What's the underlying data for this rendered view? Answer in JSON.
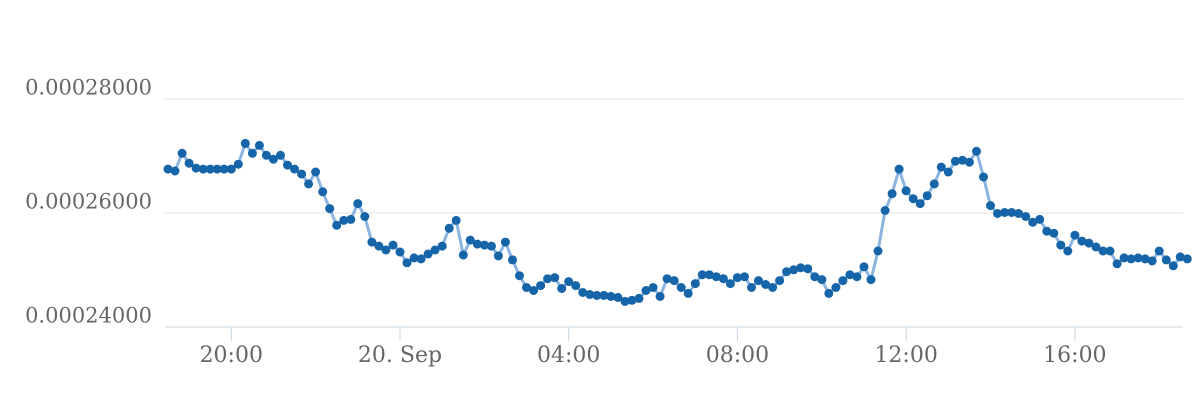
{
  "chart": {
    "title": "",
    "style": {
      "background_color": "#ffffff",
      "marker_color": "#1565A8",
      "line_color": "#8CB4E1",
      "grid_color": "#E6E6E6",
      "axis_line_color": "#C7D4E2",
      "label_color": "#666666"
    }
  },
  "chart_data": {
    "type": "line",
    "title": "",
    "xlabel": "",
    "ylabel": "",
    "legend": "none",
    "grid": "horizontal",
    "marker_style": "filled-circle",
    "x_start": "19. Sep 18:30",
    "x_interval_minutes": 10,
    "ylim": [
      0.00024,
      0.00029
    ],
    "yticks": [
      {
        "label": "0.00028000",
        "value": 0.00028
      },
      {
        "label": "0.00026000",
        "value": 0.00026
      },
      {
        "label": "0.00024000",
        "value": 0.00024
      }
    ],
    "xticks": [
      {
        "label": "20:00",
        "index": 9
      },
      {
        "label": "20. Sep",
        "index": 33
      },
      {
        "label": "04:00",
        "index": 57
      },
      {
        "label": "08:00",
        "index": 81
      },
      {
        "label": "12:00",
        "index": 105
      },
      {
        "label": "16:00",
        "index": 129
      }
    ],
    "values": [
      0.00026771,
      0.00026736,
      0.00027048,
      0.00026874,
      0.00026788,
      0.00026771,
      0.00026771,
      0.00026771,
      0.00026771,
      0.00026771,
      0.00026857,
      0.00027221,
      0.00027048,
      0.00027186,
      0.00027013,
      0.00026944,
      0.00027013,
      0.0002684,
      0.00026771,
      0.00026684,
      0.00026511,
      0.00026719,
      0.00026372,
      0.00026078,
      0.00025784,
      0.0002587,
      0.00025887,
      0.00026165,
      0.00025939,
      0.00025489,
      0.0002542,
      0.00025351,
      0.00025437,
      0.00025316,
      0.00025126,
      0.00025212,
      0.00025195,
      0.00025281,
      0.00025351,
      0.0002542,
      0.00025732,
      0.0002587,
      0.00025264,
      0.00025524,
      0.00025455,
      0.00025437,
      0.0002542,
      0.00025247,
      0.00025489,
      0.00025177,
      0.000249,
      0.00024693,
      0.00024641,
      0.00024727,
      0.00024848,
      0.00024866,
      0.00024675,
      0.00024797,
      0.00024727,
      0.00024606,
      0.00024571,
      0.00024554,
      0.00024554,
      0.00024537,
      0.0002452,
      0.0002445,
      0.00024468,
      0.00024502,
      0.00024641,
      0.00024693,
      0.00024537,
      0.00024848,
      0.00024814,
      0.00024693,
      0.00024589,
      0.00024762,
      0.00024918,
      0.00024918,
      0.00024883,
      0.00024848,
      0.00024762,
      0.00024866,
      0.00024883,
      0.00024693,
      0.00024814,
      0.00024745,
      0.00024693,
      0.00024814,
      0.0002497,
      0.00025004,
      0.00025039,
      0.00025022,
      0.00024883,
      0.00024831,
      0.00024589,
      0.00024693,
      0.00024814,
      0.00024918,
      0.00024883,
      0.00025056,
      0.00024831,
      0.00025333,
      0.00026043,
      0.00026338,
      0.00026771,
      0.0002639,
      0.00026251,
      0.00026165,
      0.00026303,
      0.00026511,
      0.00026805,
      0.00026719,
      0.00026909,
      0.00026926,
      0.00026892,
      0.00027082,
      0.00026632,
      0.0002613,
      0.00025991,
      0.00026009,
      0.00026009,
      0.00025991,
      0.00025939,
      0.00025836,
      0.00025887,
      0.0002568,
      0.00025645,
      0.00025437,
      0.00025333,
      0.0002561,
      0.00025507,
      0.00025472,
      0.00025403,
      0.00025333,
      0.00025333,
      0.00025108,
      0.00025212,
      0.00025195,
      0.00025212,
      0.00025195,
      0.0002516,
      0.00025333,
      0.00025177,
      0.00025074,
      0.00025229,
      0.00025195
    ]
  }
}
